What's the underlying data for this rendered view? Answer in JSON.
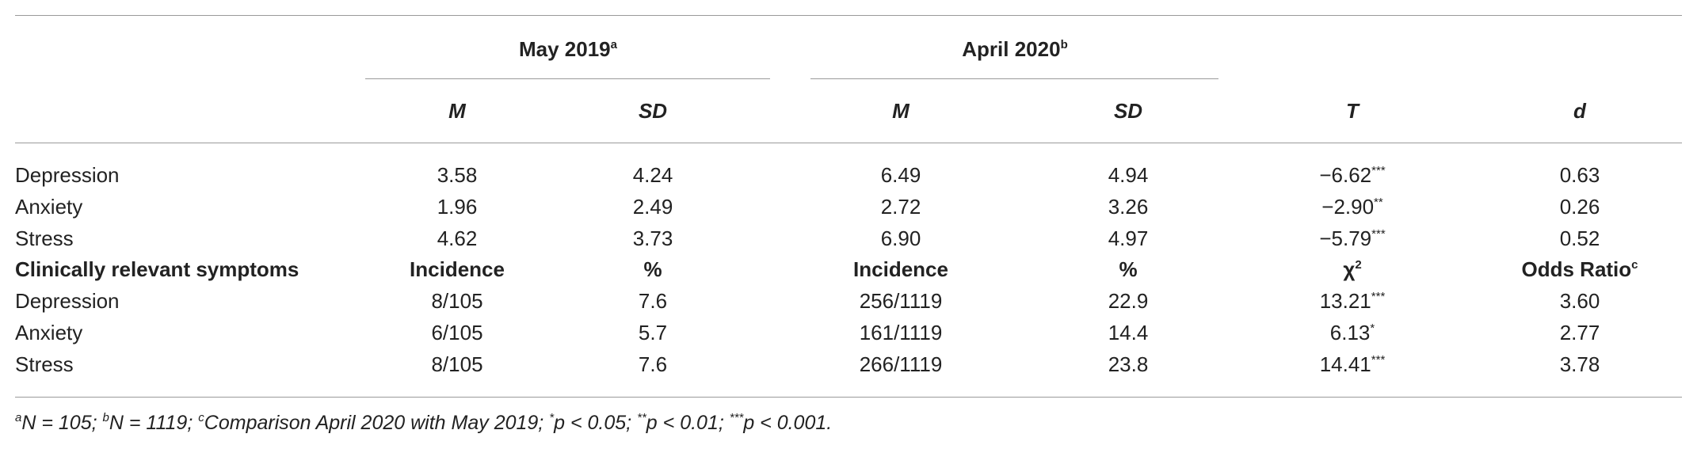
{
  "table": {
    "group_headers": [
      {
        "text": "May 2019",
        "sup": "a"
      },
      {
        "text": "April 2020",
        "sup": "b"
      }
    ],
    "columns": [
      "M",
      "SD",
      "M",
      "SD",
      "T",
      "d"
    ],
    "sections": [
      {
        "rows": [
          [
            "Depression",
            "3.58",
            "4.24",
            "6.49",
            "4.94",
            {
              "text": "−6.62",
              "sup": "***"
            },
            "0.63"
          ],
          [
            "Anxiety",
            "1.96",
            "2.49",
            "2.72",
            "3.26",
            {
              "text": "−2.90",
              "sup": "**"
            },
            "0.26"
          ],
          [
            "Stress",
            "4.62",
            "3.73",
            "6.90",
            "4.97",
            {
              "text": "−5.79",
              "sup": "***"
            },
            "0.52"
          ]
        ]
      },
      {
        "header": [
          "Clinically relevant symptoms",
          "Incidence",
          "%",
          "Incidence",
          "%",
          {
            "text": "χ",
            "sup": "2"
          },
          {
            "text": "Odds Ratio",
            "sup": "c"
          }
        ],
        "rows": [
          [
            "Depression",
            "8/105",
            "7.6",
            "256/1119",
            "22.9",
            {
              "text": "13.21",
              "sup": "***"
            },
            "3.60"
          ],
          [
            "Anxiety",
            "6/105",
            "5.7",
            "161/1119",
            "14.4",
            {
              "text": "6.13",
              "sup": "*"
            },
            "2.77"
          ],
          [
            "Stress",
            "8/105",
            "7.6",
            "266/1119",
            "23.8",
            {
              "text": "14.41",
              "sup": "***"
            },
            "3.78"
          ]
        ]
      }
    ],
    "footnote": [
      {
        "sup": "a",
        "text": "N = 105;"
      },
      {
        "sup": "b",
        "text": "N = 1119;"
      },
      {
        "sup": "c",
        "text": "Comparison April 2020 with May 2019;"
      },
      {
        "sup": "*",
        "text": "p < 0.05;"
      },
      {
        "sup": "**",
        "text": "p < 0.01;"
      },
      {
        "sup": "***",
        "text": "p < 0.001."
      }
    ]
  }
}
